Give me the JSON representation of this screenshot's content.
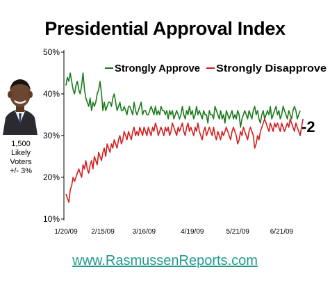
{
  "header": {
    "title": "Presidential Approval Index"
  },
  "sidebar": {
    "photo_label": "President Obama",
    "caption": [
      "1,500",
      "Likely",
      "Voters",
      "+/- 3%"
    ]
  },
  "footer": {
    "url": "www.RasmussenReports.com"
  },
  "chart_data": {
    "type": "line",
    "title": "Presidential Approval Index",
    "xlabel": "",
    "ylabel": "",
    "ylim": [
      10,
      50
    ],
    "yticks": [
      10,
      20,
      30,
      40,
      50
    ],
    "ytick_labels": [
      "10%",
      "20%",
      "30%",
      "40%",
      "50%"
    ],
    "x_ticks": [
      {
        "label": "1/20/09",
        "index": 0
      },
      {
        "label": "2/15/09",
        "index": 26
      },
      {
        "label": "3/16/09",
        "index": 55
      },
      {
        "label": "4/19/09",
        "index": 89
      },
      {
        "label": "5/21/09",
        "index": 121
      },
      {
        "label": "6/21/09",
        "index": 152
      }
    ],
    "grid": false,
    "legend_position": "top",
    "annotation": "-2",
    "series": [
      {
        "name": "Strongly Approve",
        "color": "#1a7a1a",
        "values": [
          42,
          44,
          43,
          45,
          43,
          41,
          40,
          42,
          43,
          41,
          40,
          42,
          45,
          41,
          39,
          38,
          37,
          39,
          36,
          38,
          37,
          38,
          40,
          41,
          43,
          40,
          36,
          38,
          36,
          37,
          38,
          38,
          37,
          39,
          40,
          38,
          36,
          37,
          38,
          36,
          36,
          37,
          36,
          35,
          37,
          37,
          36,
          35,
          38,
          36,
          35,
          36,
          37,
          38,
          35,
          36,
          36,
          35,
          35,
          36,
          37,
          36,
          35,
          37,
          35,
          36,
          35,
          37,
          36,
          36,
          35,
          36,
          34,
          36,
          35,
          36,
          34,
          35,
          36,
          35,
          34,
          35,
          37,
          35,
          34,
          36,
          35,
          37,
          35,
          36,
          34,
          35,
          37,
          35,
          36,
          35,
          34,
          36,
          35,
          35,
          33,
          36,
          35,
          35,
          34,
          37,
          36,
          35,
          34,
          36,
          34,
          35,
          33,
          36,
          35,
          34,
          35,
          36,
          34,
          35,
          34,
          36,
          35,
          32,
          34,
          35,
          36,
          35,
          34,
          36,
          35,
          34,
          36,
          37,
          35,
          36,
          34,
          33,
          35,
          36,
          34,
          35,
          36,
          35,
          37,
          34,
          35,
          36,
          37,
          35,
          36,
          34,
          35,
          37,
          36,
          35,
          34,
          36,
          35,
          34,
          36,
          37,
          36,
          34,
          35,
          36
        ]
      },
      {
        "name": "Strongly Disapprove",
        "color": "#d21e1e",
        "values": [
          16,
          15,
          14,
          17,
          18,
          20,
          19,
          20,
          21,
          22,
          21,
          20,
          23,
          22,
          24,
          22,
          21,
          23,
          24,
          22,
          25,
          24,
          23,
          26,
          25,
          24,
          26,
          27,
          25,
          28,
          27,
          26,
          28,
          27,
          29,
          28,
          27,
          29,
          30,
          28,
          29,
          31,
          30,
          29,
          31,
          30,
          29,
          31,
          32,
          30,
          31,
          30,
          32,
          31,
          30,
          32,
          31,
          30,
          32,
          31,
          30,
          32,
          31,
          33,
          32,
          30,
          31,
          32,
          31,
          30,
          32,
          31,
          32,
          30,
          31,
          33,
          32,
          31,
          30,
          32,
          31,
          32,
          33,
          31,
          30,
          32,
          33,
          31,
          32,
          31,
          30,
          32,
          31,
          33,
          31,
          30,
          29,
          31,
          32,
          30,
          31,
          32,
          31,
          30,
          32,
          30,
          29,
          31,
          30,
          29,
          31,
          30,
          31,
          32,
          31,
          30,
          29,
          31,
          32,
          31,
          30,
          28,
          29,
          31,
          30,
          32,
          31,
          30,
          29,
          31,
          32,
          31,
          30,
          27,
          28,
          30,
          29,
          31,
          32,
          33,
          34,
          33,
          32,
          31,
          33,
          32,
          31,
          33,
          32,
          33,
          32,
          31,
          33,
          32,
          31,
          32,
          33,
          32,
          34,
          33,
          32,
          31,
          33,
          32,
          31,
          30,
          32,
          34
        ]
      }
    ]
  }
}
